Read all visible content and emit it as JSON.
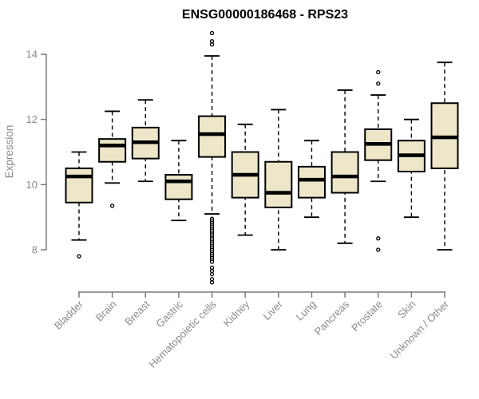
{
  "chart_data": {
    "type": "boxplot",
    "title": "ENSG00000186468 - RPS23",
    "ylabel": "Expression",
    "xlabel": "",
    "ylim": [
      8,
      14
    ],
    "yticks": [
      8,
      10,
      12,
      14
    ],
    "grid": false,
    "legend": false,
    "categories": [
      "Bladder",
      "Brain",
      "Breast",
      "Gastric",
      "Hematopoietic cells",
      "Kidney",
      "Liver",
      "Lung",
      "Pancreas",
      "Prostate",
      "Skin",
      "Unknown / Other"
    ],
    "boxes": [
      {
        "category": "Bladder",
        "whisker_low": 8.3,
        "q1": 9.45,
        "median": 10.25,
        "q3": 10.5,
        "whisker_high": 11.0,
        "outliers": [
          7.8
        ]
      },
      {
        "category": "Brain",
        "whisker_low": 10.05,
        "q1": 10.7,
        "median": 11.2,
        "q3": 11.4,
        "whisker_high": 12.25,
        "outliers": [
          9.35
        ]
      },
      {
        "category": "Breast",
        "whisker_low": 10.1,
        "q1": 10.8,
        "median": 11.3,
        "q3": 11.75,
        "whisker_high": 12.6,
        "outliers": []
      },
      {
        "category": "Gastric",
        "whisker_low": 8.9,
        "q1": 9.55,
        "median": 10.1,
        "q3": 10.3,
        "whisker_high": 11.35,
        "outliers": []
      },
      {
        "category": "Hematopoietic cells",
        "whisker_low": 9.1,
        "q1": 10.85,
        "median": 11.55,
        "q3": 12.1,
        "whisker_high": 13.95,
        "outliers": [
          14.65,
          14.4,
          14.3,
          8.95,
          8.89,
          8.83,
          8.77,
          8.71,
          8.65,
          8.59,
          8.53,
          8.47,
          8.41,
          8.35,
          8.29,
          8.23,
          8.17,
          8.11,
          8.05,
          7.99,
          7.93,
          7.87,
          7.81,
          7.75,
          7.69,
          7.63,
          7.45,
          7.35,
          7.25,
          7.1,
          7.0
        ]
      },
      {
        "category": "Kidney",
        "whisker_low": 8.45,
        "q1": 9.6,
        "median": 10.3,
        "q3": 11.0,
        "whisker_high": 11.85,
        "outliers": []
      },
      {
        "category": "Liver",
        "whisker_low": 8.0,
        "q1": 9.3,
        "median": 9.75,
        "q3": 10.7,
        "whisker_high": 12.3,
        "outliers": []
      },
      {
        "category": "Lung",
        "whisker_low": 9.0,
        "q1": 9.6,
        "median": 10.15,
        "q3": 10.55,
        "whisker_high": 11.35,
        "outliers": []
      },
      {
        "category": "Pancreas",
        "whisker_low": 8.2,
        "q1": 9.75,
        "median": 10.25,
        "q3": 11.0,
        "whisker_high": 12.9,
        "outliers": []
      },
      {
        "category": "Prostate",
        "whisker_low": 10.1,
        "q1": 10.75,
        "median": 11.25,
        "q3": 11.7,
        "whisker_high": 12.75,
        "outliers": [
          13.45,
          13.1,
          8.35,
          8.0
        ]
      },
      {
        "category": "Skin",
        "whisker_low": 9.0,
        "q1": 10.4,
        "median": 10.9,
        "q3": 11.35,
        "whisker_high": 12.0,
        "outliers": []
      },
      {
        "category": "Unknown / Other",
        "whisker_low": 8.0,
        "q1": 10.5,
        "median": 11.45,
        "q3": 12.5,
        "whisker_high": 13.75,
        "outliers": []
      }
    ],
    "styles": {
      "box_fill": "#EDE6C8",
      "box_stroke": "#000000",
      "median_color": "#000000",
      "whisker_color": "#000000",
      "outlier_stroke": "#000000",
      "outlier_fill": "#FFFFFF",
      "axis_color": "#7a7a7a",
      "label_color": "#8a8a8a",
      "title_color": "#000000",
      "background": "#FFFFFF"
    }
  }
}
